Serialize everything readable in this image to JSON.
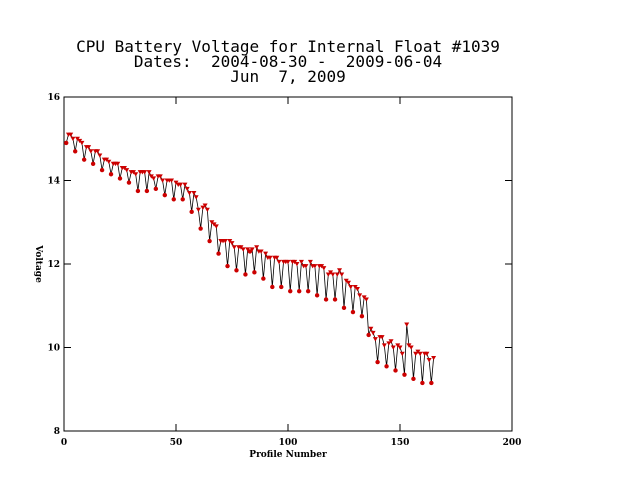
{
  "chart_data": {
    "type": "line",
    "title": "CPU Battery Voltage for Internal Float #1039",
    "subtitle": "Dates:  2004-08-30 -  2009-06-04",
    "date": "Jun  7, 2009",
    "xlabel": "Profile Number",
    "ylabel": "Voltage",
    "xlim": [
      0,
      200
    ],
    "xticks": [
      0,
      50,
      100,
      150,
      200
    ],
    "ylim": [
      8,
      16
    ],
    "yticks": [
      8,
      10,
      12,
      14,
      16
    ],
    "line_color": "#000000",
    "marker_color": "#cc0000",
    "x": [
      1,
      2,
      3,
      4,
      5,
      6,
      7,
      8,
      9,
      10,
      11,
      12,
      13,
      14,
      15,
      16,
      17,
      18,
      19,
      20,
      21,
      22,
      23,
      24,
      25,
      26,
      27,
      28,
      29,
      30,
      31,
      32,
      33,
      34,
      35,
      36,
      37,
      38,
      39,
      40,
      41,
      42,
      43,
      44,
      45,
      46,
      47,
      48,
      49,
      50,
      51,
      52,
      53,
      54,
      55,
      56,
      57,
      58,
      59,
      60,
      61,
      62,
      63,
      64,
      65,
      66,
      67,
      68,
      69,
      70,
      71,
      72,
      73,
      74,
      75,
      76,
      77,
      78,
      79,
      80,
      81,
      82,
      83,
      84,
      85,
      86,
      87,
      88,
      89,
      90,
      91,
      92,
      93,
      94,
      95,
      96,
      97,
      98,
      99,
      100,
      101,
      102,
      103,
      104,
      105,
      106,
      107,
      108,
      109,
      110,
      111,
      112,
      113,
      114,
      115,
      116,
      117,
      118,
      119,
      120,
      121,
      122,
      123,
      124,
      125,
      126,
      127,
      128,
      129,
      130,
      131,
      132,
      133,
      134,
      135,
      136,
      137,
      138,
      139,
      140,
      141,
      142,
      143,
      144,
      145,
      146,
      147,
      148,
      149,
      150,
      151,
      152,
      153,
      154,
      155,
      156,
      157,
      158,
      159,
      160,
      161,
      162,
      163,
      164,
      165
    ],
    "values": [
      14.9,
      15.1,
      15.1,
      15.0,
      14.7,
      15.0,
      14.95,
      14.9,
      14.5,
      14.8,
      14.8,
      14.7,
      14.4,
      14.7,
      14.7,
      14.6,
      14.25,
      14.5,
      14.5,
      14.45,
      14.15,
      14.4,
      14.4,
      14.4,
      14.05,
      14.3,
      14.3,
      14.25,
      13.95,
      14.2,
      14.2,
      14.15,
      13.75,
      14.2,
      14.2,
      14.2,
      13.75,
      14.2,
      14.1,
      14.05,
      13.8,
      14.1,
      14.1,
      14.0,
      13.65,
      14.0,
      14.0,
      14.0,
      13.55,
      13.95,
      13.9,
      13.9,
      13.55,
      13.9,
      13.8,
      13.7,
      13.25,
      13.7,
      13.6,
      13.3,
      12.85,
      13.35,
      13.4,
      13.3,
      12.55,
      13.0,
      12.95,
      12.9,
      12.25,
      12.55,
      12.55,
      12.55,
      11.95,
      12.55,
      12.5,
      12.4,
      11.85,
      12.4,
      12.4,
      12.35,
      11.75,
      12.35,
      12.3,
      12.35,
      11.8,
      12.4,
      12.3,
      12.3,
      11.65,
      12.25,
      12.15,
      12.15,
      11.45,
      12.15,
      12.15,
      12.05,
      11.45,
      12.05,
      12.05,
      12.05,
      11.35,
      12.05,
      12.05,
      12.0,
      11.35,
      12.05,
      11.95,
      11.95,
      11.35,
      12.05,
      11.95,
      11.95,
      11.25,
      11.95,
      11.95,
      11.9,
      11.15,
      11.75,
      11.8,
      11.75,
      11.15,
      11.75,
      11.85,
      11.75,
      10.95,
      11.6,
      11.55,
      11.45,
      10.85,
      11.45,
      11.4,
      11.25,
      10.75,
      11.2,
      11.15,
      10.3,
      10.45,
      10.35,
      10.2,
      9.65,
      10.25,
      10.25,
      10.05,
      9.55,
      10.1,
      10.15,
      10.0,
      9.45,
      10.05,
      10.0,
      9.85,
      9.35,
      10.55,
      10.05,
      10.0,
      9.25,
      9.85,
      9.9,
      9.85,
      9.15,
      9.85,
      9.85,
      9.7,
      9.15,
      9.75
    ]
  }
}
